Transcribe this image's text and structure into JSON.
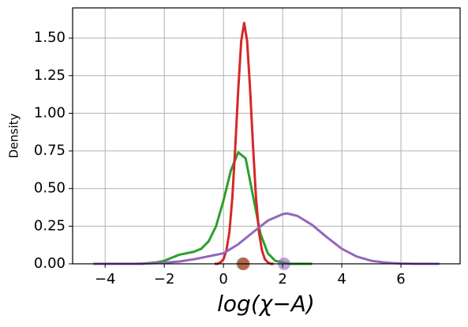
{
  "chart_data": {
    "type": "line",
    "xlabel": "log(χ−A)",
    "ylabel": "Density",
    "xlim": [
      -5.1,
      8.0
    ],
    "ylim": [
      0,
      1.7
    ],
    "xticks": [
      {
        "value": -4,
        "label": "−4"
      },
      {
        "value": -2,
        "label": "−2"
      },
      0,
      2,
      4,
      6
    ],
    "yticks": [
      {
        "value": 0,
        "label": "0.00"
      },
      {
        "value": 0.25,
        "label": "0.25"
      },
      {
        "value": 0.5,
        "label": "0.50"
      },
      {
        "value": 0.75,
        "label": "0.75"
      },
      {
        "value": 1.0,
        "label": "1.00"
      },
      {
        "value": 1.25,
        "label": "1.25"
      },
      {
        "value": 1.5,
        "label": "1.50"
      }
    ],
    "grid": true,
    "series": [
      {
        "color": "#2ca02c",
        "marker_x": 0.65,
        "x": [
          -3,
          -2.75,
          -2.5,
          -2.25,
          -2,
          -1.75,
          -1.5,
          -1.25,
          -1,
          -0.75,
          -0.5,
          -0.25,
          0,
          0.25,
          0.5,
          0.75,
          1,
          1.25,
          1.5,
          1.75,
          2,
          2.25,
          2.5,
          2.75,
          3
        ],
        "values": [
          0,
          0,
          0.005,
          0.01,
          0.02,
          0.04,
          0.06,
          0.07,
          0.08,
          0.1,
          0.15,
          0.25,
          0.42,
          0.62,
          0.74,
          0.7,
          0.45,
          0.2,
          0.07,
          0.02,
          0.01,
          0,
          0,
          0,
          0
        ]
      },
      {
        "color": "#d62728",
        "marker_x": 0.68,
        "x": [
          -0.3,
          -0.2,
          -0.1,
          0,
          0.1,
          0.2,
          0.3,
          0.4,
          0.5,
          0.6,
          0.7,
          0.8,
          0.9,
          1.0,
          1.1,
          1.2,
          1.3,
          1.4,
          1.5,
          1.6,
          1.7
        ],
        "values": [
          0,
          0,
          0.01,
          0.03,
          0.09,
          0.21,
          0.44,
          0.78,
          1.16,
          1.48,
          1.6,
          1.48,
          1.16,
          0.78,
          0.44,
          0.21,
          0.09,
          0.03,
          0.01,
          0,
          0
        ]
      },
      {
        "color": "#9467bd",
        "marker_x": 2.05,
        "x": [
          -4.4,
          -4,
          -3.5,
          -3,
          -2.5,
          -2,
          -1.5,
          -1,
          -0.5,
          0,
          0.5,
          1,
          1.5,
          2,
          2.15,
          2.5,
          3,
          3.5,
          4,
          4.5,
          5,
          5.5,
          6,
          6.5,
          7,
          7.3
        ],
        "values": [
          0,
          0,
          0,
          0,
          0.003,
          0.008,
          0.015,
          0.03,
          0.05,
          0.07,
          0.13,
          0.21,
          0.287,
          0.33,
          0.335,
          0.318,
          0.258,
          0.176,
          0.1,
          0.049,
          0.02,
          0.007,
          0.002,
          0,
          0,
          0
        ]
      }
    ]
  }
}
